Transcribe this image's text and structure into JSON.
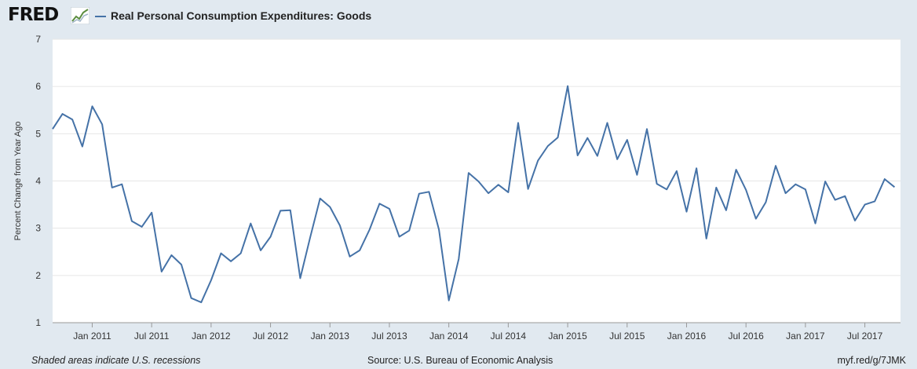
{
  "header": {
    "logo_text": "FRED",
    "legend_label": "Real Personal Consumption Expenditures: Goods",
    "logo_icon": "line-chart-icon"
  },
  "footer": {
    "recession_note": "Shaded areas indicate U.S. recessions",
    "source": "Source: U.S. Bureau of Economic Analysis",
    "short_url": "myf.red/g/7JMK"
  },
  "colors": {
    "background": "#e1e9f0",
    "plot_background": "#ffffff",
    "series": "#4572a7",
    "grid": "#e6e6e6"
  },
  "chart_data": {
    "type": "line",
    "title": "Real Personal Consumption Expenditures: Goods",
    "xlabel": "",
    "ylabel": "Percent Change from Year Ago",
    "ylim": [
      1,
      7
    ],
    "yticks": [
      "1",
      "2",
      "3",
      "4",
      "5",
      "6",
      "7"
    ],
    "start": "2010-09",
    "xlim_months": [
      0,
      85.6
    ],
    "xticks": [
      {
        "label": "Jan 2011",
        "month": 4
      },
      {
        "label": "Jul 2011",
        "month": 10
      },
      {
        "label": "Jan 2012",
        "month": 16
      },
      {
        "label": "Jul 2012",
        "month": 22
      },
      {
        "label": "Jan 2013",
        "month": 28
      },
      {
        "label": "Jul 2013",
        "month": 34
      },
      {
        "label": "Jan 2014",
        "month": 40
      },
      {
        "label": "Jul 2014",
        "month": 46
      },
      {
        "label": "Jan 2015",
        "month": 52
      },
      {
        "label": "Jul 2015",
        "month": 58
      },
      {
        "label": "Jan 2016",
        "month": 64
      },
      {
        "label": "Jul 2016",
        "month": 70
      },
      {
        "label": "Jan 2017",
        "month": 76
      },
      {
        "label": "Jul 2017",
        "month": 82
      }
    ],
    "series": [
      {
        "name": "Real Personal Consumption Expenditures: Goods",
        "values": [
          5.1,
          5.42,
          5.3,
          4.73,
          5.58,
          5.2,
          3.86,
          3.93,
          3.15,
          3.03,
          3.33,
          2.08,
          2.43,
          2.23,
          1.52,
          1.43,
          1.9,
          2.47,
          2.3,
          2.47,
          3.1,
          2.53,
          2.82,
          3.37,
          3.38,
          1.94,
          2.8,
          3.63,
          3.45,
          3.06,
          2.4,
          2.53,
          2.97,
          3.52,
          3.41,
          2.82,
          2.95,
          3.73,
          3.77,
          2.97,
          1.47,
          2.35,
          4.17,
          3.99,
          3.74,
          3.92,
          3.76,
          5.23,
          3.83,
          4.43,
          4.74,
          4.92,
          6.01,
          4.54,
          4.91,
          4.53,
          5.23,
          4.46,
          4.87,
          4.13,
          5.1,
          3.94,
          3.82,
          4.21,
          3.35,
          4.27,
          2.78,
          3.86,
          3.38,
          4.24,
          3.81,
          3.2,
          3.55,
          4.32,
          3.74,
          3.93,
          3.82,
          3.1,
          3.99,
          3.6,
          3.68,
          3.16,
          3.5,
          3.57,
          4.04,
          3.87
        ]
      }
    ]
  }
}
